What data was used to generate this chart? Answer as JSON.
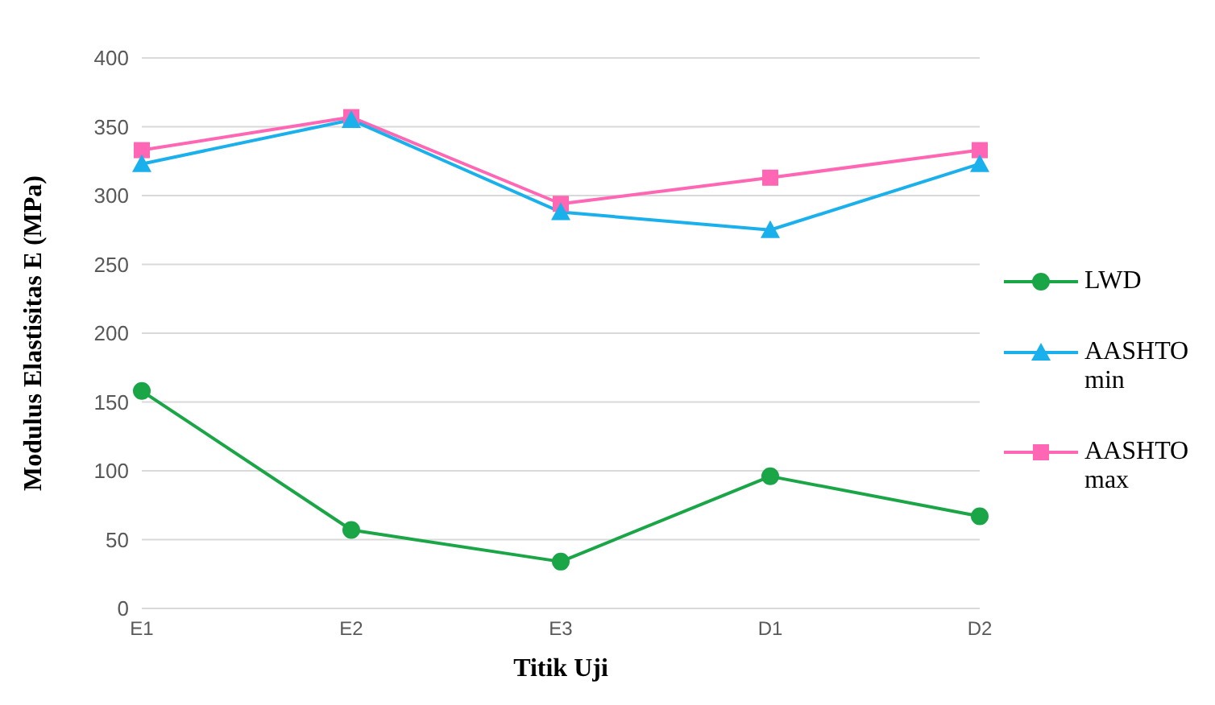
{
  "chart_data": {
    "type": "line",
    "xlabel": "Titik Uji",
    "ylabel": "Modulus Elastisitas E (MPa)",
    "categories": [
      "E1",
      "E2",
      "E3",
      "D1",
      "D2"
    ],
    "series": [
      {
        "name": "LWD",
        "color": "#1aa547",
        "marker": "circle",
        "values": [
          158,
          57,
          34,
          96,
          67
        ]
      },
      {
        "name": "AASHTO min",
        "color": "#1ab0ec",
        "marker": "triangle",
        "values": [
          323,
          355,
          288,
          275,
          323
        ]
      },
      {
        "name": "AASHTO max",
        "color": "#ff66b3",
        "marker": "square",
        "values": [
          333,
          357,
          294,
          313,
          333
        ]
      }
    ],
    "ylim": [
      0,
      400
    ],
    "yticks": [
      0,
      50,
      100,
      150,
      200,
      250,
      300,
      350,
      400
    ],
    "grid": "y",
    "legend": "right"
  }
}
